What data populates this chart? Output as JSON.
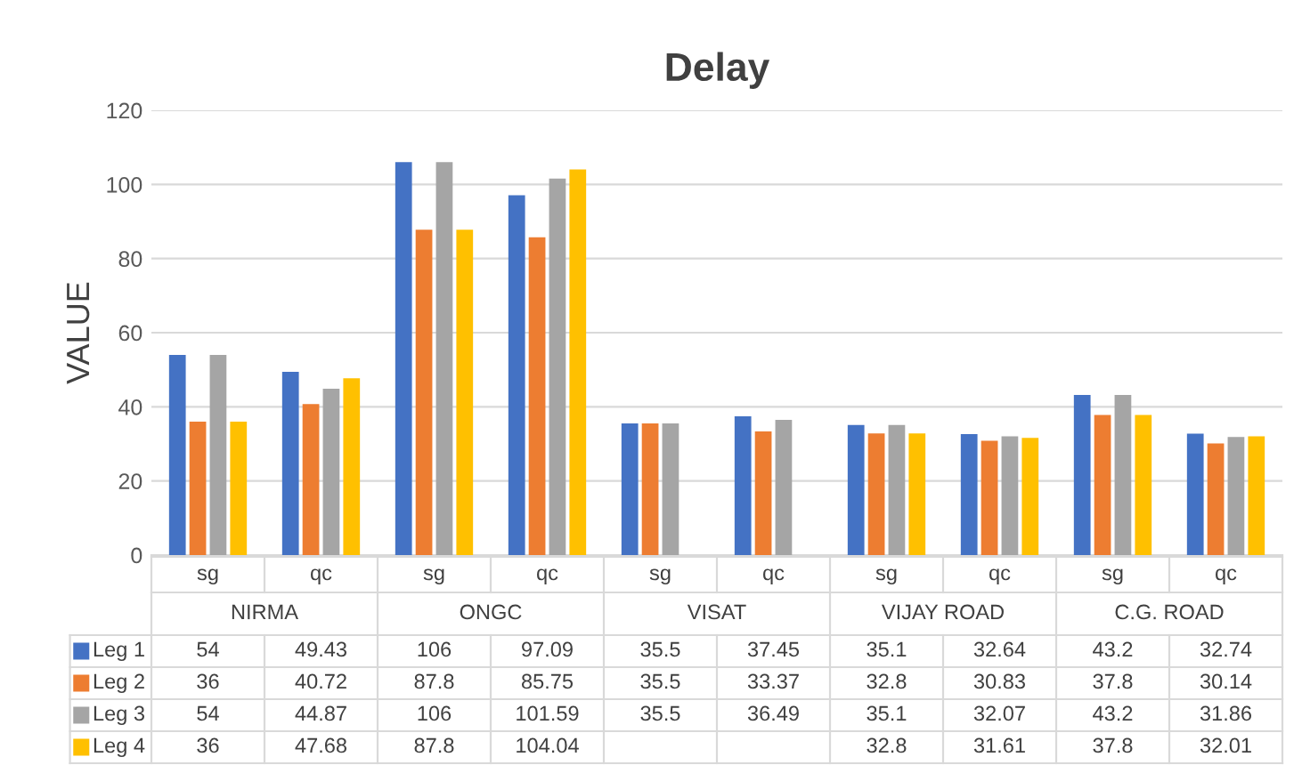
{
  "chart_data": {
    "type": "bar",
    "title": "Delay",
    "ylabel": "VALUE",
    "categories": [
      "sg",
      "qc",
      "sg",
      "qc",
      "sg",
      "qc",
      "sg",
      "qc",
      "sg",
      "qc"
    ],
    "annotations": [
      "NIRMA",
      "ONGC",
      "VISAT",
      "VIJAY ROAD",
      "C.G. ROAD"
    ],
    "series": [
      {
        "name": "Leg 1",
        "color": "#4472c4",
        "values": [
          54,
          49.43,
          106,
          97.09,
          35.5,
          37.45,
          35.1,
          32.64,
          43.2,
          32.74
        ]
      },
      {
        "name": "Leg 2",
        "color": "#ed7d31",
        "values": [
          36,
          40.72,
          87.8,
          85.75,
          35.5,
          33.37,
          32.8,
          30.83,
          37.8,
          30.14
        ]
      },
      {
        "name": "Leg 3",
        "color": "#a5a5a5",
        "values": [
          54,
          44.87,
          106,
          101.59,
          35.5,
          36.49,
          35.1,
          32.07,
          43.2,
          31.86
        ]
      },
      {
        "name": "Leg 4",
        "color": "#ffc000",
        "values": [
          36,
          47.68,
          87.8,
          104.04,
          null,
          null,
          32.8,
          31.61,
          37.8,
          32.01
        ]
      }
    ],
    "ylim": [
      0,
      120
    ],
    "yticks": [
      0,
      20,
      40,
      60,
      80,
      100,
      120
    ],
    "grid": "y",
    "legend": "bottom",
    "data_labels": true
  }
}
